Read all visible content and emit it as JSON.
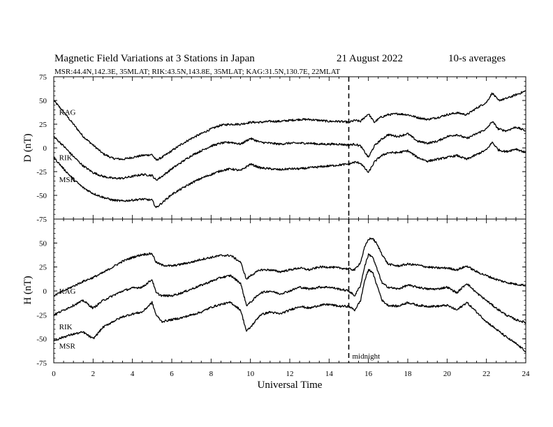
{
  "header": {
    "title": "Magnetic Field Variations at 3 Stations in Japan",
    "date": "21  August  2022",
    "averaging": "10-s averages",
    "stations": "MSR:44.4N,142.3E, 35MLAT;  RIK:43.5N,143.8E, 35MLAT;  KAG:31.5N,130.7E, 22MLAT"
  },
  "chart_data": [
    {
      "panel": "D",
      "type": "line",
      "ylabel": "D (nT)",
      "xlabel": "",
      "xlim": [
        0,
        24
      ],
      "ylim": [
        -75,
        75
      ],
      "yticks": [
        "75",
        "50",
        "25",
        "0",
        "-25",
        "-50",
        "-75"
      ],
      "xticks": [],
      "series": [
        {
          "name": "KAG",
          "label_at": [
            0.2,
            38
          ],
          "x": [
            0,
            0.5,
            1,
            1.5,
            2,
            2.5,
            3,
            3.5,
            4,
            4.5,
            5,
            5.2,
            5.5,
            6,
            6.5,
            7,
            7.5,
            8,
            8.5,
            9,
            9.5,
            10,
            10.5,
            11,
            11.5,
            12,
            12.5,
            13,
            13.5,
            14,
            14.5,
            15,
            15.3,
            15.6,
            16,
            16.3,
            16.6,
            17,
            17.5,
            18,
            18.5,
            19,
            19.5,
            20,
            20.5,
            21,
            21.5,
            22,
            22.3,
            22.6,
            23,
            23.5,
            24
          ],
          "y": [
            50,
            38,
            25,
            12,
            3,
            -6,
            -11,
            -12,
            -10,
            -8,
            -7,
            -13,
            -10,
            -3,
            4,
            10,
            15,
            20,
            24,
            25,
            25,
            27,
            27,
            28,
            28,
            29,
            30,
            30,
            29,
            28,
            28,
            27,
            29,
            28,
            36,
            27,
            32,
            35,
            36,
            35,
            32,
            30,
            32,
            35,
            37,
            35,
            42,
            48,
            58,
            50,
            52,
            56,
            60
          ]
        },
        {
          "name": "RIK",
          "label_at": [
            0.2,
            -10
          ],
          "x": [
            0,
            0.5,
            1,
            1.5,
            2,
            2.5,
            3,
            3.5,
            4,
            4.5,
            5,
            5.2,
            5.5,
            6,
            6.5,
            7,
            7.5,
            8,
            8.5,
            9,
            9.5,
            10,
            10.5,
            11,
            11.5,
            12,
            12.5,
            13,
            13.5,
            14,
            14.5,
            15,
            15.3,
            15.6,
            16,
            16.3,
            16.6,
            17,
            17.5,
            18,
            18.5,
            19,
            19.5,
            20,
            20.5,
            21,
            21.5,
            22,
            22.3,
            22.6,
            23,
            23.5,
            24
          ],
          "y": [
            12,
            2,
            -9,
            -19,
            -26,
            -30,
            -32,
            -32,
            -30,
            -28,
            -29,
            -34,
            -30,
            -22,
            -15,
            -8,
            -3,
            2,
            5,
            6,
            4,
            10,
            6,
            5,
            4,
            5,
            5,
            5,
            4,
            4,
            4,
            3,
            4,
            2,
            -10,
            2,
            8,
            14,
            12,
            15,
            7,
            5,
            7,
            12,
            14,
            10,
            15,
            20,
            28,
            20,
            18,
            22,
            18
          ]
        },
        {
          "name": "MSR",
          "label_at": [
            0.2,
            -33
          ],
          "x": [
            0,
            0.5,
            1,
            1.5,
            2,
            2.5,
            3,
            3.5,
            4,
            4.5,
            5,
            5.2,
            5.5,
            6,
            6.5,
            7,
            7.5,
            8,
            8.5,
            9,
            9.5,
            10,
            10.5,
            11,
            11.5,
            12,
            12.5,
            13,
            13.5,
            14,
            14.5,
            15,
            15.3,
            15.6,
            16,
            16.3,
            16.6,
            17,
            17.5,
            18,
            18.5,
            19,
            19.5,
            20,
            20.5,
            21,
            21.5,
            22,
            22.3,
            22.6,
            23,
            23.5,
            24
          ],
          "y": [
            -10,
            -22,
            -33,
            -42,
            -48,
            -52,
            -55,
            -56,
            -55,
            -54,
            -55,
            -63,
            -58,
            -49,
            -43,
            -37,
            -32,
            -28,
            -24,
            -22,
            -24,
            -17,
            -21,
            -22,
            -23,
            -22,
            -22,
            -21,
            -20,
            -19,
            -18,
            -17,
            -15,
            -16,
            -26,
            -15,
            -9,
            -5,
            -5,
            -3,
            -10,
            -14,
            -12,
            -10,
            -8,
            -12,
            -7,
            -2,
            6,
            -2,
            -4,
            -1,
            -5
          ]
        }
      ]
    },
    {
      "panel": "H",
      "type": "line",
      "ylabel": "H (nT)",
      "xlabel": "Universal Time",
      "xlim": [
        0,
        24
      ],
      "ylim": [
        -75,
        75
      ],
      "yticks": [
        "50",
        "25",
        "0",
        "-25",
        "-50",
        "-75"
      ],
      "xticks": [
        "0",
        "2",
        "4",
        "6",
        "8",
        "10",
        "12",
        "14",
        "16",
        "18",
        "20",
        "22",
        "24"
      ],
      "annotation": {
        "x": 15,
        "text": "midnight"
      },
      "series": [
        {
          "name": "KAG",
          "label_at": [
            0.2,
            0
          ],
          "x": [
            0,
            0.5,
            1,
            1.5,
            2,
            2.5,
            3,
            3.5,
            4,
            4.5,
            5,
            5.2,
            5.5,
            6,
            6.5,
            7,
            7.5,
            8,
            8.5,
            9,
            9.5,
            9.8,
            10,
            10.5,
            11,
            11.5,
            12,
            12.5,
            13,
            13.5,
            14,
            14.5,
            15,
            15.3,
            15.6,
            15.8,
            16,
            16.2,
            16.4,
            16.7,
            17,
            17.5,
            18,
            18.5,
            19,
            19.5,
            20,
            20.5,
            21,
            21.5,
            22,
            22.5,
            23,
            23.5,
            24
          ],
          "y": [
            -5,
            0,
            5,
            10,
            14,
            19,
            25,
            31,
            35,
            38,
            39,
            30,
            27,
            26,
            28,
            30,
            33,
            35,
            37,
            37,
            30,
            12,
            16,
            22,
            22,
            20,
            22,
            24,
            22,
            25,
            25,
            24,
            23,
            22,
            30,
            45,
            54,
            55,
            50,
            38,
            28,
            26,
            28,
            27,
            25,
            24,
            24,
            22,
            26,
            20,
            16,
            12,
            9,
            7,
            6
          ]
        },
        {
          "name": "RIK",
          "label_at": [
            0.2,
            -37
          ],
          "x": [
            0,
            0.5,
            1,
            1.5,
            2,
            2.5,
            3,
            3.5,
            4,
            4.5,
            5,
            5.2,
            5.5,
            6,
            6.5,
            7,
            7.5,
            8,
            8.5,
            9,
            9.5,
            9.8,
            10,
            10.5,
            11,
            11.5,
            12,
            12.5,
            13,
            13.5,
            14,
            14.5,
            15,
            15.3,
            15.6,
            15.8,
            16,
            16.2,
            16.4,
            16.7,
            17,
            17.5,
            18,
            18.5,
            19,
            19.5,
            20,
            20.5,
            21,
            21.5,
            22,
            22.5,
            23,
            23.5,
            24
          ],
          "y": [
            -25,
            -20,
            -15,
            -10,
            -18,
            -10,
            -5,
            0,
            3,
            4,
            12,
            -2,
            -5,
            -5,
            -2,
            2,
            6,
            10,
            14,
            16,
            8,
            -15,
            -12,
            -2,
            0,
            -3,
            0,
            4,
            2,
            4,
            4,
            2,
            0,
            -5,
            6,
            25,
            38,
            36,
            25,
            8,
            4,
            2,
            6,
            4,
            2,
            2,
            4,
            -2,
            8,
            -2,
            -10,
            -18,
            -25,
            -30,
            -33
          ]
        },
        {
          "name": "MSR",
          "label_at": [
            0.2,
            -57
          ],
          "x": [
            0,
            0.5,
            1,
            1.5,
            2,
            2.5,
            3,
            3.5,
            4,
            4.5,
            5,
            5.2,
            5.5,
            6,
            6.5,
            7,
            7.5,
            8,
            8.5,
            9,
            9.5,
            9.8,
            10,
            10.5,
            11,
            11.5,
            12,
            12.5,
            13,
            13.5,
            14,
            14.5,
            15,
            15.3,
            15.6,
            15.8,
            16,
            16.2,
            16.4,
            16.7,
            17,
            17.5,
            18,
            18.5,
            19,
            19.5,
            20,
            20.5,
            21,
            21.5,
            22,
            22.5,
            23,
            23.5,
            24
          ],
          "y": [
            -52,
            -48,
            -45,
            -43,
            -50,
            -38,
            -32,
            -27,
            -24,
            -22,
            -12,
            -25,
            -32,
            -30,
            -28,
            -25,
            -22,
            -17,
            -14,
            -12,
            -20,
            -42,
            -38,
            -25,
            -22,
            -24,
            -20,
            -16,
            -18,
            -15,
            -14,
            -16,
            -16,
            -20,
            -10,
            10,
            22,
            20,
            8,
            -10,
            -15,
            -16,
            -12,
            -15,
            -16,
            -16,
            -15,
            -20,
            -12,
            -22,
            -32,
            -40,
            -48,
            -55,
            -63
          ]
        }
      ]
    }
  ]
}
